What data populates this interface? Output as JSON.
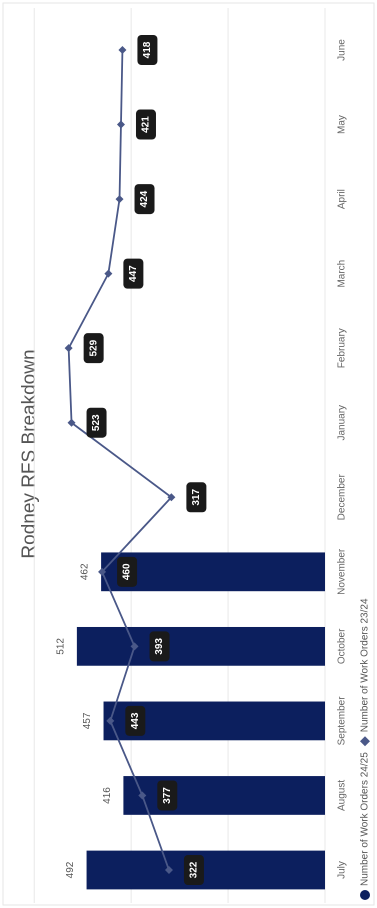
{
  "chart_data": {
    "type": "bar-line",
    "title": "Rodney RFS Breakdown",
    "categories": [
      "July",
      "August",
      "September",
      "October",
      "November",
      "December",
      "January",
      "February",
      "March",
      "April",
      "May",
      "June"
    ],
    "series": [
      {
        "name": "Number of Work Orders 24/25",
        "type": "bar",
        "color": "#0c1f5e",
        "values": [
          492,
          416,
          457,
          512,
          462,
          null,
          null,
          null,
          null,
          null,
          null,
          null
        ]
      },
      {
        "name": "Number of Work Orders 23/24",
        "type": "line",
        "color": "#4a5888",
        "values": [
          322,
          377,
          443,
          393,
          460,
          317,
          523,
          529,
          447,
          424,
          421,
          418
        ]
      }
    ],
    "ylim": [
      0,
      650
    ],
    "yticks": [
      0,
      200,
      400,
      600
    ],
    "grid": true
  }
}
